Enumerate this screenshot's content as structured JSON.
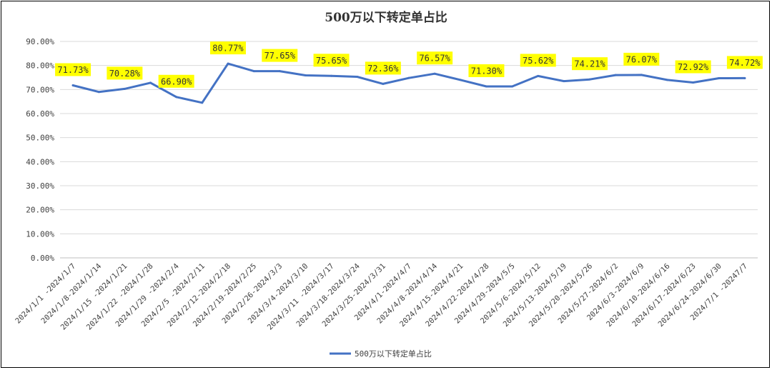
{
  "chart_data": {
    "type": "line",
    "title": "500万以下转定单占比",
    "xlabel": "",
    "ylabel": "",
    "ylim": [
      0,
      90
    ],
    "y_ticks": [
      "0.00%",
      "10.00%",
      "20.00%",
      "30.00%",
      "40.00%",
      "50.00%",
      "60.00%",
      "70.00%",
      "80.00%",
      "90.00%"
    ],
    "grid": true,
    "legend_position": "bottom",
    "categories": [
      "2024/1/1 -2024/1/7",
      "2024/1/8-2024/1/14",
      "2024/1/15 -2024/1/21",
      "2024/1/22 -2024/1/28",
      "2024/1/29 -2024/2/4",
      "2024/2/5 -2024/2/11",
      "2024/2/12-2024/2/18",
      "2024/2/19-2024/2/25",
      "2024/2/26-2024/3/3",
      "2024/3/4-2024/3/10",
      "2024/3/11 -2024/3/17",
      "2024/3/18-2024/3/24",
      "2024/3/25-2024/3/31",
      "2024/4/1-2024/4/7",
      "2024/4/8-2024/4/14",
      "2024/4/15-2024/4/21",
      "2024/4/22-2024/4/28",
      "2024/4/29-2024/5/5",
      "2024/5/6-2024/5/12",
      "2024/5/13-2024/5/19",
      "2024/5/20-2024/5/26",
      "2024/5/27-2024/6/2",
      "2024/6/3-2024/6/9",
      "2024/6/10-2024/6/16",
      "2024/6/17-2024/6/23",
      "2024/6/24-2024/6/30",
      "2024/7/1 -20247/7"
    ],
    "series": [
      {
        "name": "500万以下转定单占比",
        "color": "#4472C4",
        "values": [
          71.73,
          69.0,
          70.28,
          72.8,
          66.9,
          64.5,
          80.77,
          77.65,
          77.65,
          75.9,
          75.65,
          75.3,
          72.36,
          74.8,
          76.57,
          74.0,
          71.3,
          71.3,
          75.62,
          73.5,
          74.21,
          76.0,
          76.07,
          74.0,
          72.92,
          74.7,
          74.72
        ]
      }
    ],
    "data_labels": [
      {
        "index": 0,
        "text": "71.73%"
      },
      {
        "index": 2,
        "text": "70.28%"
      },
      {
        "index": 4,
        "text": "66.90%"
      },
      {
        "index": 6,
        "text": "80.77%"
      },
      {
        "index": 8,
        "text": "77.65%"
      },
      {
        "index": 10,
        "text": "75.65%"
      },
      {
        "index": 12,
        "text": "72.36%"
      },
      {
        "index": 14,
        "text": "76.57%"
      },
      {
        "index": 16,
        "text": "71.30%"
      },
      {
        "index": 18,
        "text": "75.62%"
      },
      {
        "index": 20,
        "text": "74.21%"
      },
      {
        "index": 22,
        "text": "76.07%"
      },
      {
        "index": 24,
        "text": "72.92%"
      },
      {
        "index": 26,
        "text": "74.72%"
      }
    ],
    "label_highlight_color": "#FFFF00",
    "grid_color": "#D9D9D9"
  }
}
